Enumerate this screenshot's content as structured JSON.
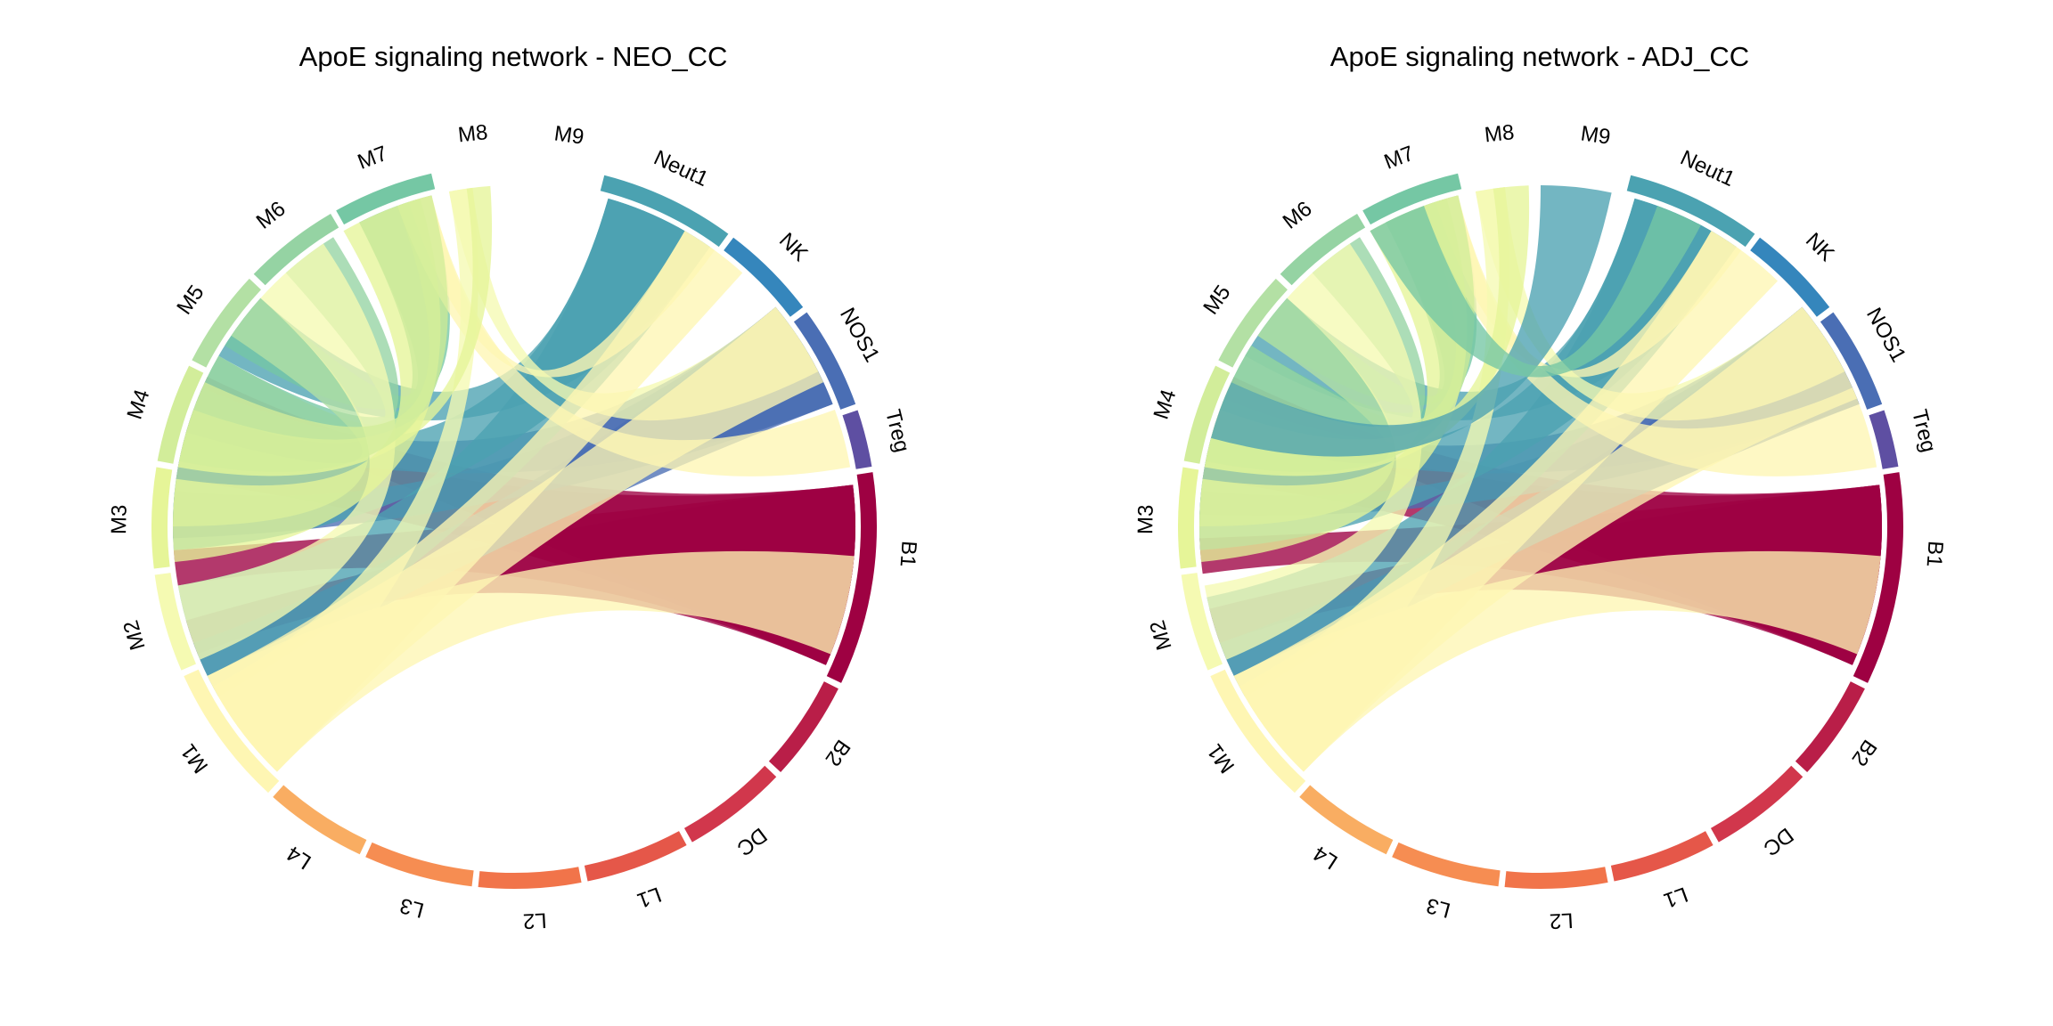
{
  "panels": [
    {
      "title": "ApoE signaling network - NEO_CC"
    },
    {
      "title": "ApoE signaling network - ADJ_CC"
    }
  ],
  "segments": [
    {
      "label": "B1",
      "color": "#9E0142"
    },
    {
      "label": "B2",
      "color": "#B91E48"
    },
    {
      "label": "DC",
      "color": "#D1374C"
    },
    {
      "label": "L1",
      "color": "#E55749"
    },
    {
      "label": "L2",
      "color": "#F1744A"
    },
    {
      "label": "L3",
      "color": "#F68D52"
    },
    {
      "label": "L4",
      "color": "#F9AD62"
    },
    {
      "label": "M1",
      "color": "#FEF6B3"
    },
    {
      "label": "M2",
      "color": "#F5FAB2"
    },
    {
      "label": "M3",
      "color": "#E6F598"
    },
    {
      "label": "M4",
      "color": "#D2ED9A"
    },
    {
      "label": "M5",
      "color": "#B3E0A4"
    },
    {
      "label": "M6",
      "color": "#95D3A3"
    },
    {
      "label": "M7",
      "color": "#75C7A4"
    },
    {
      "label": "M8",
      "color": "#5FB8A7"
    },
    {
      "label": "M9",
      "color": "#4BA2B1"
    },
    {
      "label": "Neut1",
      "color": "#4BA2B1"
    },
    {
      "label": "NK",
      "color": "#3586BC"
    },
    {
      "label": "NOS1",
      "color": "#4A6EB4"
    },
    {
      "label": "Treg",
      "color": "#5E4FA2"
    }
  ]
}
